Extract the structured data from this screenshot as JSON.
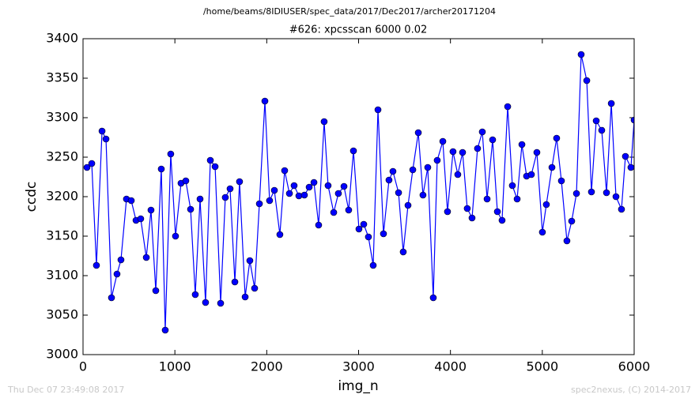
{
  "chart_data": {
    "type": "line",
    "suptitle": "/home/beams/8IDIUSER/spec_data/2017/Dec2017/archer20171204",
    "title": "#626: xpcsscan 6000 0.02",
    "x_label": "img_n",
    "y_label": "ccdc",
    "footer_left": "Thu Dec 07 23:49:08 2017",
    "footer_right": "spec2nexus, (C) 2014-2017",
    "xlim": [
      0,
      6000
    ],
    "xticks": [
      0,
      1000,
      2000,
      3000,
      4000,
      5000,
      6000
    ],
    "ylim": [
      3000,
      3400
    ],
    "yticks": [
      3000,
      3050,
      3100,
      3150,
      3200,
      3250,
      3300,
      3350,
      3400
    ],
    "series": [
      {
        "color": "#0000ff",
        "x": [
          43,
          95,
          146,
          207,
          250,
          310,
          370,
          413,
          473,
          525,
          577,
          628,
          689,
          740,
          792,
          852,
          895,
          955,
          1007,
          1067,
          1119,
          1171,
          1222,
          1274,
          1334,
          1386,
          1438,
          1498,
          1549,
          1601,
          1653,
          1704,
          1765,
          1816,
          1868,
          1920,
          1980,
          2031,
          2083,
          2143,
          2195,
          2247,
          2298,
          2350,
          2410,
          2462,
          2514,
          2565,
          2625,
          2668,
          2729,
          2780,
          2841,
          2892,
          2944,
          3004,
          3056,
          3107,
          3159,
          3211,
          3271,
          3331,
          3374,
          3435,
          3486,
          3538,
          3590,
          3650,
          3701,
          3753,
          3813,
          3856,
          3917,
          3968,
          4028,
          4080,
          4132,
          4183,
          4235,
          4295,
          4347,
          4399,
          4459,
          4511,
          4562,
          4623,
          4674,
          4726,
          4778,
          4829,
          4881,
          4941,
          5001,
          5044,
          5105,
          5156,
          5208,
          5268,
          5320,
          5372,
          5423,
          5484,
          5535,
          5587,
          5647,
          5699,
          5751,
          5802,
          5862,
          5905,
          5965,
          6000
        ],
        "values": [
          3237,
          3242,
          3113,
          3283,
          3273,
          3072,
          3102,
          3120,
          3197,
          3195,
          3170,
          3172,
          3123,
          3183,
          3081,
          3235,
          3031,
          3254,
          3150,
          3217,
          3220,
          3184,
          3076,
          3197,
          3066,
          3246,
          3238,
          3065,
          3199,
          3210,
          3092,
          3219,
          3073,
          3119,
          3084,
          3191,
          3321,
          3195,
          3208,
          3152,
          3233,
          3204,
          3214,
          3201,
          3202,
          3212,
          3218,
          3164,
          3295,
          3214,
          3180,
          3204,
          3213,
          3183,
          3258,
          3159,
          3165,
          3149,
          3113,
          3310,
          3153,
          3221,
          3232,
          3205,
          3130,
          3189,
          3234,
          3281,
          3202,
          3237,
          3072,
          3246,
          3270,
          3181,
          3257,
          3228,
          3256,
          3185,
          3173,
          3261,
          3282,
          3197,
          3272,
          3181,
          3170,
          3314,
          3214,
          3197,
          3266,
          3226,
          3228,
          3256,
          3155,
          3190,
          3237,
          3274,
          3220,
          3144,
          3169,
          3204,
          3380,
          3347,
          3206,
          3296,
          3284,
          3205,
          3318,
          3200,
          3184,
          3251,
          3237,
          3297
        ]
      }
    ]
  }
}
